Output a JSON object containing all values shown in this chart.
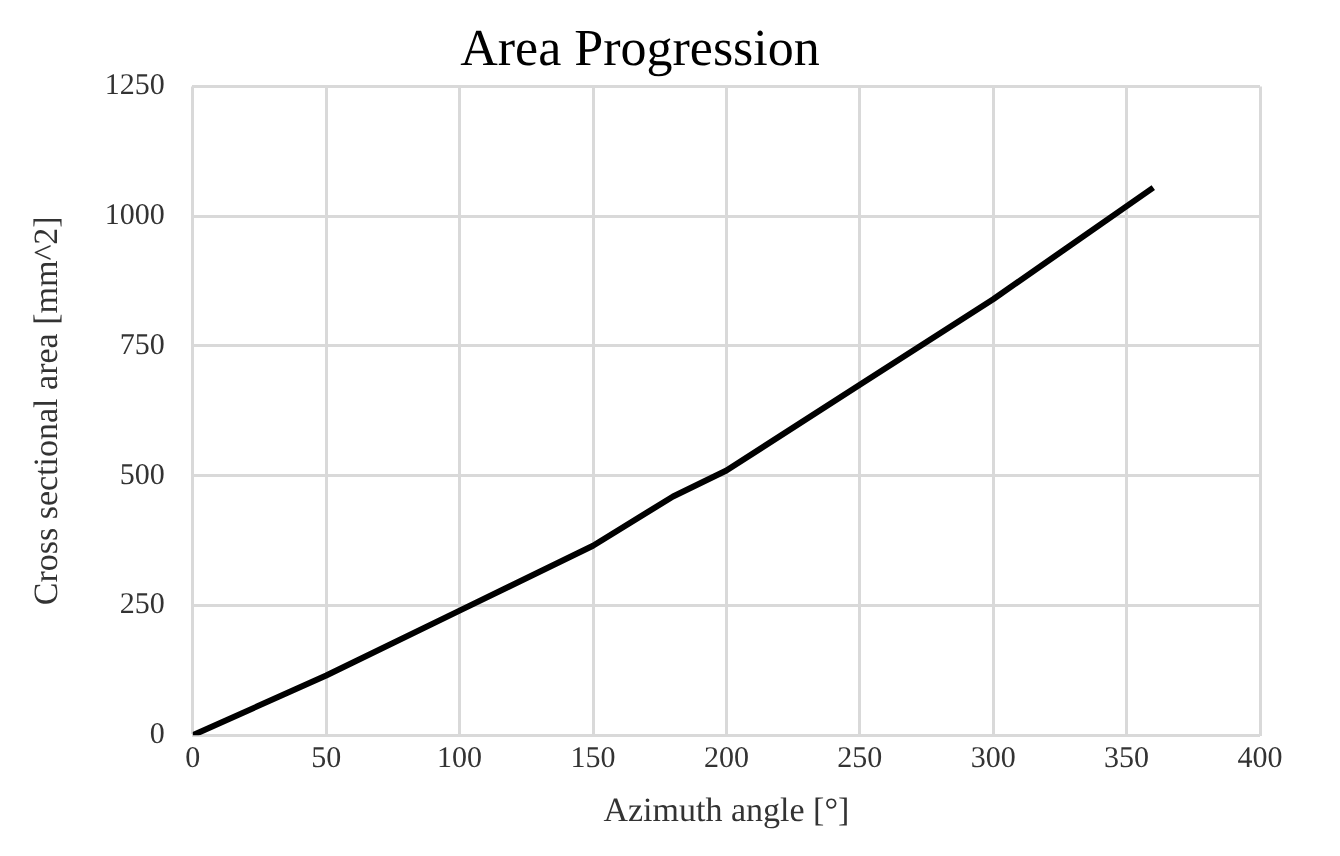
{
  "chart_data": {
    "type": "line",
    "title": "Area Progression",
    "xlabel": "Azimuth angle [°]",
    "ylabel": "Cross sectional area [mm^2]",
    "x": [
      0,
      50,
      100,
      150,
      180,
      200,
      250,
      300,
      360
    ],
    "series": [
      {
        "color": "#000000",
        "values": [
          0,
          115,
          240,
          365,
          460,
          510,
          675,
          840,
          1055
        ]
      }
    ],
    "xlim": [
      0,
      400
    ],
    "xticks": [
      0,
      50,
      100,
      150,
      200,
      250,
      300,
      350,
      400
    ],
    "ylim": [
      0,
      1250
    ],
    "yticks": [
      0,
      250,
      500,
      750,
      1000,
      1250
    ],
    "grid": true,
    "legend": false,
    "marker": "none",
    "line_style": "solid"
  }
}
